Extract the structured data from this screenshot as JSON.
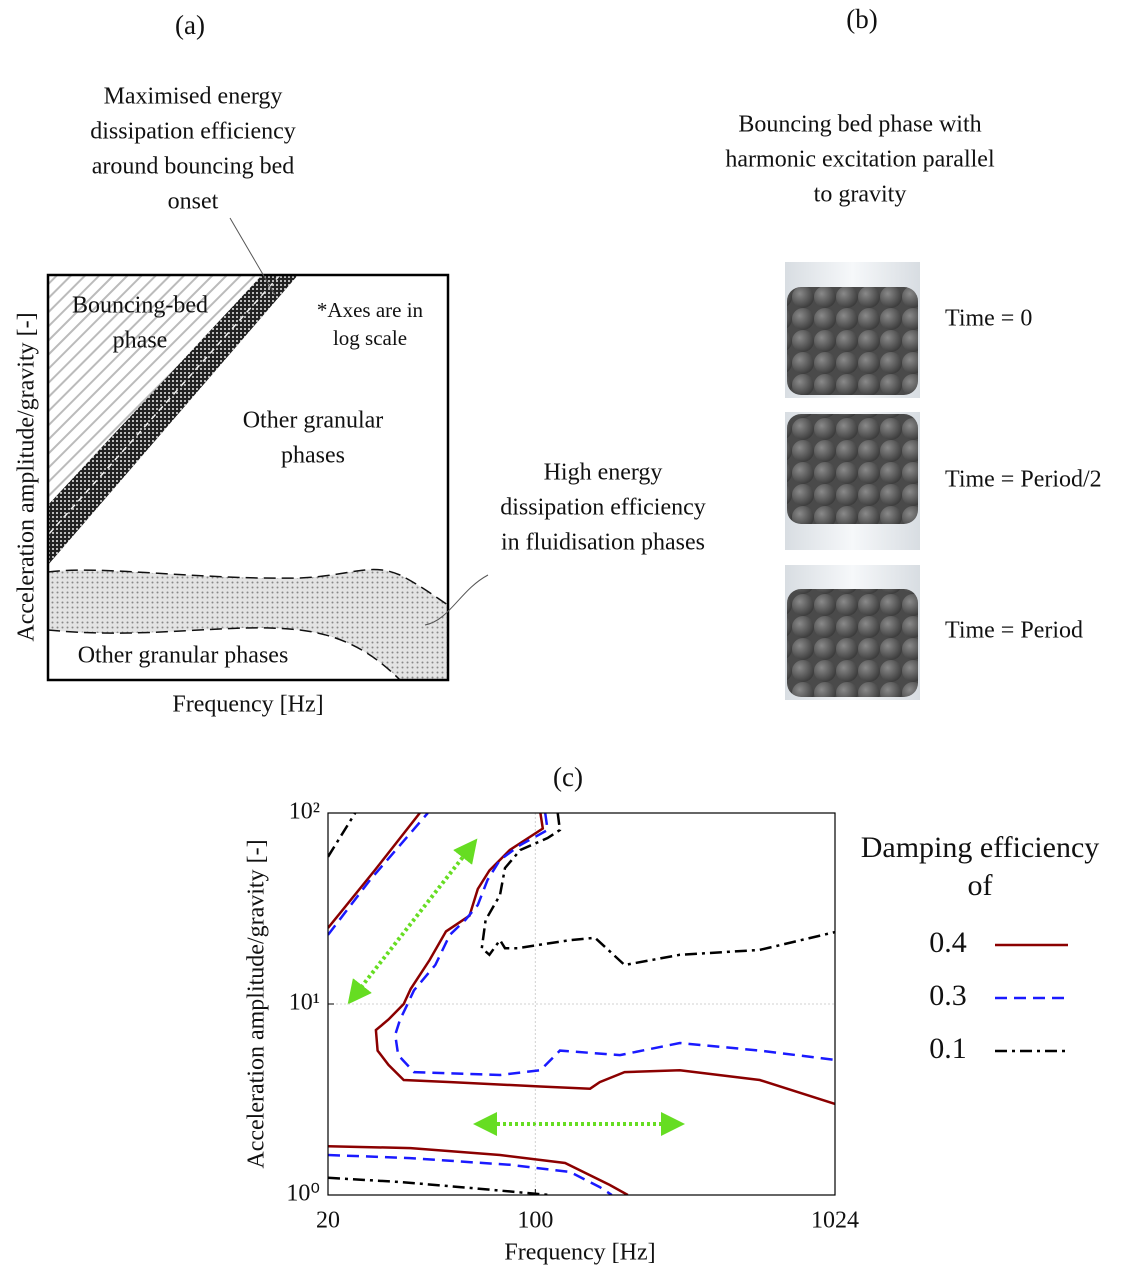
{
  "panel_a": {
    "label": "(a)",
    "top_note": [
      "Maximised energy",
      "dissipation efficiency",
      "around bouncing bed",
      "onset"
    ],
    "bouncing_region": [
      "Bouncing-bed",
      "phase"
    ],
    "axes_note": [
      "*Axes are in",
      "log scale"
    ],
    "other_region": [
      "Other granular",
      "phases"
    ],
    "right_note": [
      "High energy",
      "dissipation efficiency",
      "in fluidisation phases"
    ],
    "bottom_region": "Other granular phases",
    "xlabel": "Frequency [Hz]",
    "ylabel": "Acceleration amplitude/gravity [-]"
  },
  "panel_b": {
    "label": "(b)",
    "title": [
      "Bouncing bed phase with",
      "harmonic excitation parallel",
      "to gravity"
    ],
    "snapshots": [
      "Time = 0",
      "Time = Period/2",
      "Time = Period"
    ]
  },
  "chart_data": {
    "type": "contour",
    "title": "(c)",
    "xlabel": "Frequency [Hz]",
    "ylabel": "Acceleration amplitude/gravity [-]",
    "xscale": "log",
    "yscale": "log",
    "xlim": [
      20,
      1024
    ],
    "ylim": [
      1,
      100
    ],
    "xticks": [
      20,
      100,
      1024
    ],
    "yticks": [
      {
        "value": 1,
        "label": "10⁰"
      },
      {
        "value": 10,
        "label": "10¹"
      },
      {
        "value": 100,
        "label": "10²"
      }
    ],
    "grid": true,
    "legend_title": [
      "Damping efficiency",
      "of"
    ],
    "series": [
      {
        "name": "0.4",
        "color": "#8b0000",
        "style": "solid",
        "x": [
          20,
          28.8,
          40.8,
          null,
          104,
          106,
          82,
          70,
          64,
          60,
          50,
          44,
          38,
          36,
          32,
          29,
          29.4,
          32,
          36,
          52,
          104,
          153,
          165,
          200,
          307,
          571,
          1024,
          null,
          20,
          38,
          76,
          126,
          178,
          205
        ],
        "values": [
          25,
          50.3,
          100,
          null,
          100,
          83,
          64,
          50,
          40,
          29,
          24,
          17,
          12,
          10,
          8.3,
          7.3,
          5.7,
          4.8,
          4.0,
          3.9,
          3.7,
          3.6,
          3.9,
          4.4,
          4.5,
          4.0,
          3.0,
          null,
          1.8,
          1.76,
          1.62,
          1.47,
          1.13,
          1
        ]
      },
      {
        "name": "0.3",
        "color": "#1a1aff",
        "style": "dashed",
        "x": [
          20,
          27.7,
          43.4,
          null,
          108,
          110,
          89,
          76,
          69,
          64,
          58,
          51.5,
          46,
          39,
          37,
          35,
          33.7,
          34.5,
          39,
          76,
          104,
          121,
          193,
          307,
          571,
          1024,
          null,
          20,
          37.8,
          82,
          131,
          165,
          181
        ],
        "values": [
          23,
          44.6,
          100,
          null,
          100,
          81.5,
          68,
          56.8,
          44.6,
          33,
          27.5,
          23,
          16,
          11.8,
          9.9,
          8.3,
          6.9,
          5.4,
          4.4,
          4.25,
          4.5,
          5.7,
          5.4,
          6.25,
          5.7,
          5.1,
          null,
          1.62,
          1.56,
          1.44,
          1.32,
          1.1,
          1
        ]
      },
      {
        "name": "0.1",
        "color": "#000000",
        "style": "dashdot",
        "x": [
          20,
          24.7,
          null,
          119,
          121,
          110,
          89,
          79,
          76,
          68,
          66,
          70,
          76,
          79,
          87,
          131,
          159,
          200,
          307,
          571,
          1024,
          null,
          20,
          35,
          60,
          112
        ],
        "values": [
          59,
          100,
          null,
          100,
          81.5,
          74,
          64,
          51.5,
          37.2,
          27.5,
          19.6,
          18.1,
          21.6,
          19.6,
          19.6,
          21.6,
          22.2,
          16,
          18.1,
          19.2,
          23.8,
          null,
          1.23,
          1.17,
          1.09,
          1
        ]
      }
    ]
  }
}
